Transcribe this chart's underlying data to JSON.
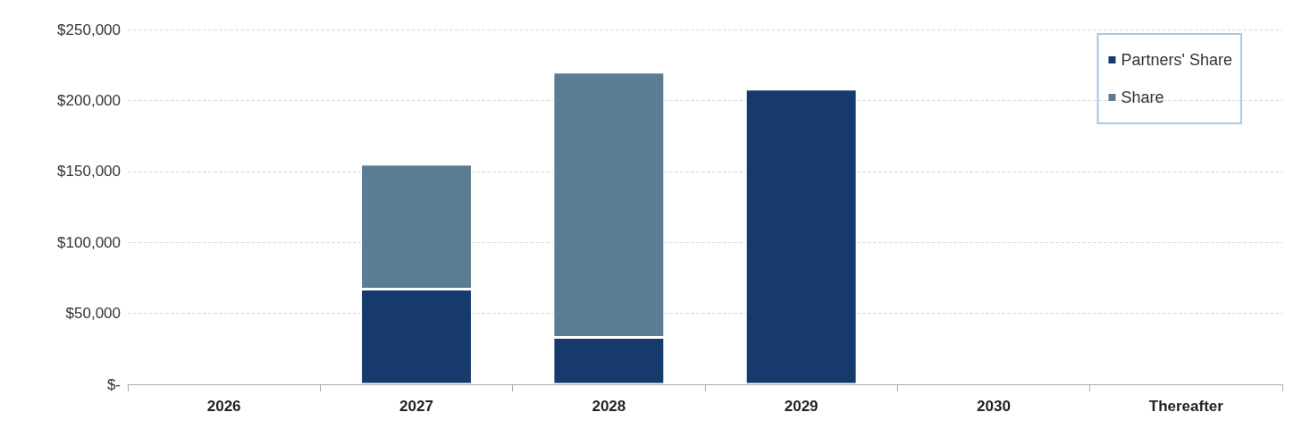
{
  "chart_data": {
    "type": "bar",
    "stacked": true,
    "categories": [
      "2026",
      "2027",
      "2028",
      "2029",
      "2030",
      "Thereafter"
    ],
    "series": [
      {
        "name": "Partners' Share",
        "color": "#163a6b",
        "values": [
          null,
          67000,
          33000,
          208000,
          null,
          null
        ]
      },
      {
        "name": "Share",
        "color": "#5b7d93",
        "values": [
          null,
          88000,
          187000,
          null,
          null,
          null
        ]
      }
    ],
    "ylim": [
      0,
      250000
    ],
    "yticks": [
      {
        "value": 0,
        "label": "$-"
      },
      {
        "value": 50000,
        "label": "$50,000"
      },
      {
        "value": 100000,
        "label": "$100,000"
      },
      {
        "value": 150000,
        "label": "$150,000"
      },
      {
        "value": 200000,
        "label": "$200,000"
      },
      {
        "value": 250000,
        "label": "$250,000"
      }
    ],
    "grid": "y",
    "legend": "top right"
  }
}
